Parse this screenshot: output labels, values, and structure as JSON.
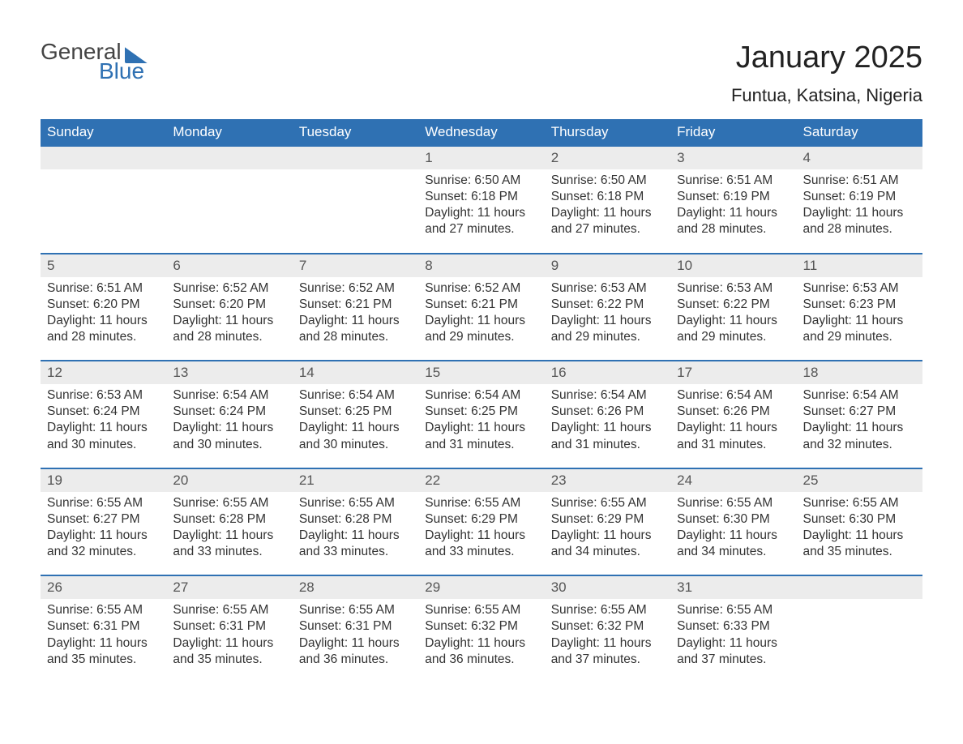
{
  "logo": {
    "general": "General",
    "blue": "Blue"
  },
  "header": {
    "month_title": "January 2025",
    "location": "Funtua, Katsina, Nigeria"
  },
  "columns": [
    "Sunday",
    "Monday",
    "Tuesday",
    "Wednesday",
    "Thursday",
    "Friday",
    "Saturday"
  ],
  "weeks": [
    [
      {
        "day": "",
        "sunrise": "",
        "sunset": "",
        "daylight": ""
      },
      {
        "day": "",
        "sunrise": "",
        "sunset": "",
        "daylight": ""
      },
      {
        "day": "",
        "sunrise": "",
        "sunset": "",
        "daylight": ""
      },
      {
        "day": "1",
        "sunrise": "Sunrise: 6:50 AM",
        "sunset": "Sunset: 6:18 PM",
        "daylight": "Daylight: 11 hours and 27 minutes."
      },
      {
        "day": "2",
        "sunrise": "Sunrise: 6:50 AM",
        "sunset": "Sunset: 6:18 PM",
        "daylight": "Daylight: 11 hours and 27 minutes."
      },
      {
        "day": "3",
        "sunrise": "Sunrise: 6:51 AM",
        "sunset": "Sunset: 6:19 PM",
        "daylight": "Daylight: 11 hours and 28 minutes."
      },
      {
        "day": "4",
        "sunrise": "Sunrise: 6:51 AM",
        "sunset": "Sunset: 6:19 PM",
        "daylight": "Daylight: 11 hours and 28 minutes."
      }
    ],
    [
      {
        "day": "5",
        "sunrise": "Sunrise: 6:51 AM",
        "sunset": "Sunset: 6:20 PM",
        "daylight": "Daylight: 11 hours and 28 minutes."
      },
      {
        "day": "6",
        "sunrise": "Sunrise: 6:52 AM",
        "sunset": "Sunset: 6:20 PM",
        "daylight": "Daylight: 11 hours and 28 minutes."
      },
      {
        "day": "7",
        "sunrise": "Sunrise: 6:52 AM",
        "sunset": "Sunset: 6:21 PM",
        "daylight": "Daylight: 11 hours and 28 minutes."
      },
      {
        "day": "8",
        "sunrise": "Sunrise: 6:52 AM",
        "sunset": "Sunset: 6:21 PM",
        "daylight": "Daylight: 11 hours and 29 minutes."
      },
      {
        "day": "9",
        "sunrise": "Sunrise: 6:53 AM",
        "sunset": "Sunset: 6:22 PM",
        "daylight": "Daylight: 11 hours and 29 minutes."
      },
      {
        "day": "10",
        "sunrise": "Sunrise: 6:53 AM",
        "sunset": "Sunset: 6:22 PM",
        "daylight": "Daylight: 11 hours and 29 minutes."
      },
      {
        "day": "11",
        "sunrise": "Sunrise: 6:53 AM",
        "sunset": "Sunset: 6:23 PM",
        "daylight": "Daylight: 11 hours and 29 minutes."
      }
    ],
    [
      {
        "day": "12",
        "sunrise": "Sunrise: 6:53 AM",
        "sunset": "Sunset: 6:24 PM",
        "daylight": "Daylight: 11 hours and 30 minutes."
      },
      {
        "day": "13",
        "sunrise": "Sunrise: 6:54 AM",
        "sunset": "Sunset: 6:24 PM",
        "daylight": "Daylight: 11 hours and 30 minutes."
      },
      {
        "day": "14",
        "sunrise": "Sunrise: 6:54 AM",
        "sunset": "Sunset: 6:25 PM",
        "daylight": "Daylight: 11 hours and 30 minutes."
      },
      {
        "day": "15",
        "sunrise": "Sunrise: 6:54 AM",
        "sunset": "Sunset: 6:25 PM",
        "daylight": "Daylight: 11 hours and 31 minutes."
      },
      {
        "day": "16",
        "sunrise": "Sunrise: 6:54 AM",
        "sunset": "Sunset: 6:26 PM",
        "daylight": "Daylight: 11 hours and 31 minutes."
      },
      {
        "day": "17",
        "sunrise": "Sunrise: 6:54 AM",
        "sunset": "Sunset: 6:26 PM",
        "daylight": "Daylight: 11 hours and 31 minutes."
      },
      {
        "day": "18",
        "sunrise": "Sunrise: 6:54 AM",
        "sunset": "Sunset: 6:27 PM",
        "daylight": "Daylight: 11 hours and 32 minutes."
      }
    ],
    [
      {
        "day": "19",
        "sunrise": "Sunrise: 6:55 AM",
        "sunset": "Sunset: 6:27 PM",
        "daylight": "Daylight: 11 hours and 32 minutes."
      },
      {
        "day": "20",
        "sunrise": "Sunrise: 6:55 AM",
        "sunset": "Sunset: 6:28 PM",
        "daylight": "Daylight: 11 hours and 33 minutes."
      },
      {
        "day": "21",
        "sunrise": "Sunrise: 6:55 AM",
        "sunset": "Sunset: 6:28 PM",
        "daylight": "Daylight: 11 hours and 33 minutes."
      },
      {
        "day": "22",
        "sunrise": "Sunrise: 6:55 AM",
        "sunset": "Sunset: 6:29 PM",
        "daylight": "Daylight: 11 hours and 33 minutes."
      },
      {
        "day": "23",
        "sunrise": "Sunrise: 6:55 AM",
        "sunset": "Sunset: 6:29 PM",
        "daylight": "Daylight: 11 hours and 34 minutes."
      },
      {
        "day": "24",
        "sunrise": "Sunrise: 6:55 AM",
        "sunset": "Sunset: 6:30 PM",
        "daylight": "Daylight: 11 hours and 34 minutes."
      },
      {
        "day": "25",
        "sunrise": "Sunrise: 6:55 AM",
        "sunset": "Sunset: 6:30 PM",
        "daylight": "Daylight: 11 hours and 35 minutes."
      }
    ],
    [
      {
        "day": "26",
        "sunrise": "Sunrise: 6:55 AM",
        "sunset": "Sunset: 6:31 PM",
        "daylight": "Daylight: 11 hours and 35 minutes."
      },
      {
        "day": "27",
        "sunrise": "Sunrise: 6:55 AM",
        "sunset": "Sunset: 6:31 PM",
        "daylight": "Daylight: 11 hours and 35 minutes."
      },
      {
        "day": "28",
        "sunrise": "Sunrise: 6:55 AM",
        "sunset": "Sunset: 6:31 PM",
        "daylight": "Daylight: 11 hours and 36 minutes."
      },
      {
        "day": "29",
        "sunrise": "Sunrise: 6:55 AM",
        "sunset": "Sunset: 6:32 PM",
        "daylight": "Daylight: 11 hours and 36 minutes."
      },
      {
        "day": "30",
        "sunrise": "Sunrise: 6:55 AM",
        "sunset": "Sunset: 6:32 PM",
        "daylight": "Daylight: 11 hours and 37 minutes."
      },
      {
        "day": "31",
        "sunrise": "Sunrise: 6:55 AM",
        "sunset": "Sunset: 6:33 PM",
        "daylight": "Daylight: 11 hours and 37 minutes."
      },
      {
        "day": "",
        "sunrise": "",
        "sunset": "",
        "daylight": ""
      }
    ]
  ],
  "styling": {
    "header_bg": "#2f71b3",
    "header_text": "#ffffff",
    "row_border": "#2f71b3",
    "daynum_bg": "#ececec",
    "daynum_color": "#555555",
    "body_color": "#333333",
    "background_color": "#ffffff",
    "month_title_fontsize": 38,
    "location_fontsize": 22,
    "header_fontsize": 17,
    "cell_fontsize": 15.5,
    "columns_count": 7
  }
}
